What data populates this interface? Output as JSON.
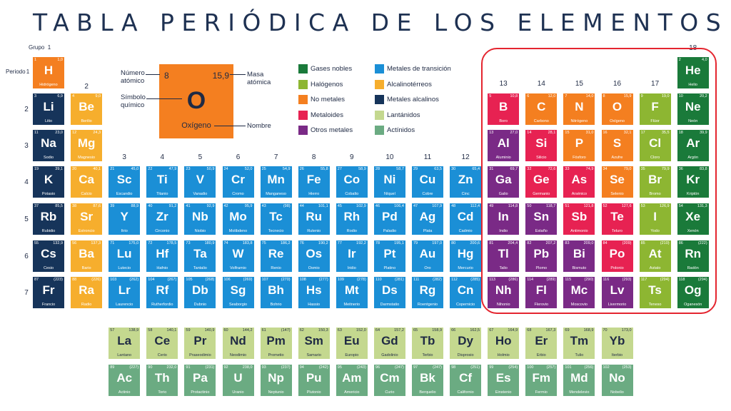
{
  "title": "TABLA PERIÓDICA DE LOS ELEMENTOS",
  "labels": {
    "grupo": "Grupo",
    "periodo": "Periodo"
  },
  "key": {
    "number": "8",
    "mass": "15,9",
    "symbol": "O",
    "name": "Oxígeno",
    "number_label_1": "Número",
    "number_label_2": "atómico",
    "symbol_label_1": "Símbolo",
    "symbol_label_2": "químico",
    "mass_label_1": "Masa",
    "mass_label_2": "atómica",
    "name_label": "Nombre"
  },
  "colors": {
    "gas_noble": "#1a7a3a",
    "halogeno": "#8db632",
    "no_metal": "#f47f20",
    "metaloide": "#e72252",
    "otro_metal": "#7a2a86",
    "transicion": "#1b8fd6",
    "alcalinoterreo": "#f6ae2d",
    "alcalino": "#16345a",
    "lantanido": "#c4d88f",
    "actinido": "#6bab82",
    "highlight": "#e4252f"
  },
  "legend": [
    {
      "label": "Gases nobles",
      "cat": "gas_noble"
    },
    {
      "label": "Halógenos",
      "cat": "halogeno"
    },
    {
      "label": "No metales",
      "cat": "no_metal"
    },
    {
      "label": "Metaloides",
      "cat": "metaloide"
    },
    {
      "label": "Otros metales",
      "cat": "otro_metal"
    },
    {
      "label": "Metales de transición",
      "cat": "transicion"
    },
    {
      "label": "Alcalinotérreos",
      "cat": "alcalinoterreo"
    },
    {
      "label": "Metales alcalinos",
      "cat": "alcalino"
    },
    {
      "label": "Lantánidos",
      "cat": "lantanido"
    },
    {
      "label": "Actínidos",
      "cat": "actinido"
    }
  ],
  "group_labels": [
    "1",
    "2",
    "3",
    "4",
    "5",
    "6",
    "7",
    "8",
    "9",
    "10",
    "11",
    "12",
    "13",
    "14",
    "15",
    "16",
    "17",
    "18"
  ],
  "period_labels": [
    "1",
    "2",
    "3",
    "4",
    "5",
    "6",
    "7"
  ],
  "elements": [
    {
      "z": "1",
      "m": "1,0",
      "s": "H",
      "n": "Hidrógeno",
      "c": "no_metal",
      "col": 1,
      "row": 1
    },
    {
      "z": "2",
      "m": "4,0",
      "s": "He",
      "n": "Helio",
      "c": "gas_noble",
      "col": 18,
      "row": 1
    },
    {
      "z": "3",
      "m": "6,9",
      "s": "Li",
      "n": "Litio",
      "c": "alcalino",
      "col": 1,
      "row": 2
    },
    {
      "z": "4",
      "m": "9,0",
      "s": "Be",
      "n": "Berilio",
      "c": "alcalinoterreo",
      "col": 2,
      "row": 2
    },
    {
      "z": "5",
      "m": "10,8",
      "s": "B",
      "n": "Boro",
      "c": "metaloide",
      "col": 13,
      "row": 2
    },
    {
      "z": "6",
      "m": "12,0",
      "s": "C",
      "n": "Carbono",
      "c": "no_metal",
      "col": 14,
      "row": 2
    },
    {
      "z": "7",
      "m": "14,0",
      "s": "N",
      "n": "Nitrógeno",
      "c": "no_metal",
      "col": 15,
      "row": 2
    },
    {
      "z": "8",
      "m": "15,9",
      "s": "O",
      "n": "Oxígeno",
      "c": "no_metal",
      "col": 16,
      "row": 2
    },
    {
      "z": "9",
      "m": "19,0",
      "s": "F",
      "n": "Flúor",
      "c": "halogeno",
      "col": 17,
      "row": 2
    },
    {
      "z": "10",
      "m": "20,2",
      "s": "Ne",
      "n": "Neón",
      "c": "gas_noble",
      "col": 18,
      "row": 2
    },
    {
      "z": "11",
      "m": "23,0",
      "s": "Na",
      "n": "Sodio",
      "c": "alcalino",
      "col": 1,
      "row": 3
    },
    {
      "z": "12",
      "m": "24,3",
      "s": "Mg",
      "n": "Magnesio",
      "c": "alcalinoterreo",
      "col": 2,
      "row": 3
    },
    {
      "z": "13",
      "m": "27,0",
      "s": "Al",
      "n": "Aluminio",
      "c": "otro_metal",
      "col": 13,
      "row": 3
    },
    {
      "z": "14",
      "m": "28,1",
      "s": "Si",
      "n": "Silicio",
      "c": "metaloide",
      "col": 14,
      "row": 3
    },
    {
      "z": "15",
      "m": "31,0",
      "s": "P",
      "n": "Fósforo",
      "c": "no_metal",
      "col": 15,
      "row": 3
    },
    {
      "z": "16",
      "m": "32,1",
      "s": "S",
      "n": "Azufre",
      "c": "no_metal",
      "col": 16,
      "row": 3
    },
    {
      "z": "17",
      "m": "35,5",
      "s": "Cl",
      "n": "Cloro",
      "c": "halogeno",
      "col": 17,
      "row": 3
    },
    {
      "z": "18",
      "m": "39,9",
      "s": "Ar",
      "n": "Argón",
      "c": "gas_noble",
      "col": 18,
      "row": 3
    },
    {
      "z": "19",
      "m": "39,1",
      "s": "K",
      "n": "Potasio",
      "c": "alcalino",
      "col": 1,
      "row": 4
    },
    {
      "z": "20",
      "m": "40,1",
      "s": "Ca",
      "n": "Calcio",
      "c": "alcalinoterreo",
      "col": 2,
      "row": 4
    },
    {
      "z": "21",
      "m": "45,0",
      "s": "Sc",
      "n": "Escandio",
      "c": "transicion",
      "col": 3,
      "row": 4
    },
    {
      "z": "22",
      "m": "47,9",
      "s": "Ti",
      "n": "Titanio",
      "c": "transicion",
      "col": 4,
      "row": 4
    },
    {
      "z": "23",
      "m": "50,9",
      "s": "V",
      "n": "Vanadio",
      "c": "transicion",
      "col": 5,
      "row": 4
    },
    {
      "z": "24",
      "m": "52,0",
      "s": "Cr",
      "n": "Cromo",
      "c": "transicion",
      "col": 6,
      "row": 4
    },
    {
      "z": "25",
      "m": "54,9",
      "s": "Mn",
      "n": "Manganeso",
      "c": "transicion",
      "col": 7,
      "row": 4
    },
    {
      "z": "26",
      "m": "55,8",
      "s": "Fe",
      "n": "Hierro",
      "c": "transicion",
      "col": 8,
      "row": 4
    },
    {
      "z": "27",
      "m": "58,9",
      "s": "Co",
      "n": "Cobalto",
      "c": "transicion",
      "col": 9,
      "row": 4
    },
    {
      "z": "28",
      "m": "58,7",
      "s": "Ni",
      "n": "Níquel",
      "c": "transicion",
      "col": 10,
      "row": 4
    },
    {
      "z": "29",
      "m": "63,5",
      "s": "Cu",
      "n": "Cobre",
      "c": "transicion",
      "col": 11,
      "row": 4
    },
    {
      "z": "30",
      "m": "65,4",
      "s": "Zn",
      "n": "Cinc",
      "c": "transicion",
      "col": 12,
      "row": 4
    },
    {
      "z": "31",
      "m": "69,7",
      "s": "Ga",
      "n": "Galio",
      "c": "otro_metal",
      "col": 13,
      "row": 4
    },
    {
      "z": "32",
      "m": "72,6",
      "s": "Ge",
      "n": "Germanio",
      "c": "metaloide",
      "col": 14,
      "row": 4
    },
    {
      "z": "33",
      "m": "74,9",
      "s": "As",
      "n": "Arsénico",
      "c": "metaloide",
      "col": 15,
      "row": 4
    },
    {
      "z": "34",
      "m": "79,0",
      "s": "Se",
      "n": "Selenio",
      "c": "no_metal",
      "col": 16,
      "row": 4
    },
    {
      "z": "35",
      "m": "79,9",
      "s": "Br",
      "n": "Bromo",
      "c": "halogeno",
      "col": 17,
      "row": 4
    },
    {
      "z": "36",
      "m": "83,8",
      "s": "Kr",
      "n": "Kriptón",
      "c": "gas_noble",
      "col": 18,
      "row": 4
    },
    {
      "z": "37",
      "m": "85,5",
      "s": "Rb",
      "n": "Rubidio",
      "c": "alcalino",
      "col": 1,
      "row": 5
    },
    {
      "z": "38",
      "m": "87,6",
      "s": "Sr",
      "n": "Estroncio",
      "c": "alcalinoterreo",
      "col": 2,
      "row": 5
    },
    {
      "z": "39",
      "m": "88,9",
      "s": "Y",
      "n": "Itrio",
      "c": "transicion",
      "col": 3,
      "row": 5
    },
    {
      "z": "40",
      "m": "91,2",
      "s": "Zr",
      "n": "Circonio",
      "c": "transicion",
      "col": 4,
      "row": 5
    },
    {
      "z": "41",
      "m": "92,9",
      "s": "Nb",
      "n": "Niobio",
      "c": "transicion",
      "col": 5,
      "row": 5
    },
    {
      "z": "42",
      "m": "95,9",
      "s": "Mo",
      "n": "Molibdeno",
      "c": "transicion",
      "col": 6,
      "row": 5
    },
    {
      "z": "43",
      "m": "(98)",
      "s": "Tc",
      "n": "Tecnecio",
      "c": "transicion",
      "col": 7,
      "row": 5
    },
    {
      "z": "44",
      "m": "101,1",
      "s": "Ru",
      "n": "Rutenio",
      "c": "transicion",
      "col": 8,
      "row": 5
    },
    {
      "z": "45",
      "m": "102,9",
      "s": "Rh",
      "n": "Rodio",
      "c": "transicion",
      "col": 9,
      "row": 5
    },
    {
      "z": "46",
      "m": "106,4",
      "s": "Pd",
      "n": "Paladio",
      "c": "transicion",
      "col": 10,
      "row": 5
    },
    {
      "z": "47",
      "m": "107,9",
      "s": "Ag",
      "n": "Plata",
      "c": "transicion",
      "col": 11,
      "row": 5
    },
    {
      "z": "48",
      "m": "112,4",
      "s": "Cd",
      "n": "Cadmio",
      "c": "transicion",
      "col": 12,
      "row": 5
    },
    {
      "z": "49",
      "m": "114,8",
      "s": "In",
      "n": "Indio",
      "c": "otro_metal",
      "col": 13,
      "row": 5
    },
    {
      "z": "50",
      "m": "118,7",
      "s": "Sn",
      "n": "Estaño",
      "c": "otro_metal",
      "col": 14,
      "row": 5
    },
    {
      "z": "51",
      "m": "121,8",
      "s": "Sb",
      "n": "Antimonio",
      "c": "metaloide",
      "col": 15,
      "row": 5
    },
    {
      "z": "52",
      "m": "127,6",
      "s": "Te",
      "n": "Teluro",
      "c": "metaloide",
      "col": 16,
      "row": 5
    },
    {
      "z": "53",
      "m": "126,9",
      "s": "I",
      "n": "Yodo",
      "c": "halogeno",
      "col": 17,
      "row": 5
    },
    {
      "z": "54",
      "m": "131,3",
      "s": "Xe",
      "n": "Xenón",
      "c": "gas_noble",
      "col": 18,
      "row": 5
    },
    {
      "z": "55",
      "m": "132,9",
      "s": "Cs",
      "n": "Cesio",
      "c": "alcalino",
      "col": 1,
      "row": 6
    },
    {
      "z": "56",
      "m": "137,3",
      "s": "Ba",
      "n": "Bario",
      "c": "alcalinoterreo",
      "col": 2,
      "row": 6
    },
    {
      "z": "71",
      "m": "175,0",
      "s": "Lu",
      "n": "Lutecio",
      "c": "transicion",
      "col": 3,
      "row": 6
    },
    {
      "z": "72",
      "m": "178,5",
      "s": "Hf",
      "n": "Hafnio",
      "c": "transicion",
      "col": 4,
      "row": 6
    },
    {
      "z": "73",
      "m": "180,9",
      "s": "Ta",
      "n": "Tantalio",
      "c": "transicion",
      "col": 5,
      "row": 6
    },
    {
      "z": "74",
      "m": "183,8",
      "s": "W",
      "n": "Volframio",
      "c": "transicion",
      "col": 6,
      "row": 6
    },
    {
      "z": "75",
      "m": "186,2",
      "s": "Re",
      "n": "Renio",
      "c": "transicion",
      "col": 7,
      "row": 6
    },
    {
      "z": "76",
      "m": "190,2",
      "s": "Os",
      "n": "Osmio",
      "c": "transicion",
      "col": 8,
      "row": 6
    },
    {
      "z": "77",
      "m": "192,2",
      "s": "Ir",
      "n": "Iridio",
      "c": "transicion",
      "col": 9,
      "row": 6
    },
    {
      "z": "78",
      "m": "195,1",
      "s": "Pt",
      "n": "Platino",
      "c": "transicion",
      "col": 10,
      "row": 6
    },
    {
      "z": "79",
      "m": "197,0",
      "s": "Au",
      "n": "Oro",
      "c": "transicion",
      "col": 11,
      "row": 6
    },
    {
      "z": "80",
      "m": "200,6",
      "s": "Hg",
      "n": "Mercurio",
      "c": "transicion",
      "col": 12,
      "row": 6
    },
    {
      "z": "81",
      "m": "204,4",
      "s": "Tl",
      "n": "Talio",
      "c": "otro_metal",
      "col": 13,
      "row": 6
    },
    {
      "z": "82",
      "m": "207,2",
      "s": "Pb",
      "n": "Plomo",
      "c": "otro_metal",
      "col": 14,
      "row": 6
    },
    {
      "z": "83",
      "m": "209,0",
      "s": "Bi",
      "n": "Bismuto",
      "c": "otro_metal",
      "col": 15,
      "row": 6
    },
    {
      "z": "84",
      "m": "(209)",
      "s": "Po",
      "n": "Polonio",
      "c": "metaloide",
      "col": 16,
      "row": 6
    },
    {
      "z": "85",
      "m": "(210)",
      "s": "At",
      "n": "Astato",
      "c": "halogeno",
      "col": 17,
      "row": 6
    },
    {
      "z": "86",
      "m": "(222)",
      "s": "Rn",
      "n": "Radón",
      "c": "gas_noble",
      "col": 18,
      "row": 6
    },
    {
      "z": "87",
      "m": "(223)",
      "s": "Fr",
      "n": "Francio",
      "c": "alcalino",
      "col": 1,
      "row": 7
    },
    {
      "z": "88",
      "m": "(226)",
      "s": "Ra",
      "n": "Radio",
      "c": "alcalinoterreo",
      "col": 2,
      "row": 7
    },
    {
      "z": "103",
      "m": "(262)",
      "s": "Lr",
      "n": "Laurencio",
      "c": "transicion",
      "col": 3,
      "row": 7
    },
    {
      "z": "104",
      "m": "(267)",
      "s": "Rf",
      "n": "Rutherfordio",
      "c": "transicion",
      "col": 4,
      "row": 7
    },
    {
      "z": "105",
      "m": "(268)",
      "s": "Db",
      "n": "Dubnio",
      "c": "transicion",
      "col": 5,
      "row": 7
    },
    {
      "z": "106",
      "m": "(269)",
      "s": "Sg",
      "n": "Seaborgio",
      "c": "transicion",
      "col": 6,
      "row": 7
    },
    {
      "z": "107",
      "m": "(270)",
      "s": "Bh",
      "n": "Bohrio",
      "c": "transicion",
      "col": 7,
      "row": 7
    },
    {
      "z": "108",
      "m": "(277)",
      "s": "Hs",
      "n": "Hassio",
      "c": "transicion",
      "col": 8,
      "row": 7
    },
    {
      "z": "109",
      "m": "(278)",
      "s": "Mt",
      "n": "Meitnerio",
      "c": "transicion",
      "col": 9,
      "row": 7
    },
    {
      "z": "110",
      "m": "(281)",
      "s": "Ds",
      "n": "Darmstatio",
      "c": "transicion",
      "col": 10,
      "row": 7
    },
    {
      "z": "111",
      "m": "(282)",
      "s": "Rg",
      "n": "Roentgenio",
      "c": "transicion",
      "col": 11,
      "row": 7
    },
    {
      "z": "112",
      "m": "(285)",
      "s": "Cn",
      "n": "Copernicio",
      "c": "transicion",
      "col": 12,
      "row": 7
    },
    {
      "z": "113",
      "m": "(286)",
      "s": "Nh",
      "n": "Nihonio",
      "c": "otro_metal",
      "col": 13,
      "row": 7
    },
    {
      "z": "114",
      "m": "(289)",
      "s": "Fl",
      "n": "Flerovio",
      "c": "otro_metal",
      "col": 14,
      "row": 7
    },
    {
      "z": "115",
      "m": "(290)",
      "s": "Mc",
      "n": "Moscovio",
      "c": "otro_metal",
      "col": 15,
      "row": 7
    },
    {
      "z": "116",
      "m": "(293)",
      "s": "Lv",
      "n": "Livermorio",
      "c": "otro_metal",
      "col": 16,
      "row": 7
    },
    {
      "z": "117",
      "m": "(294)",
      "s": "Ts",
      "n": "Teneso",
      "c": "halogeno",
      "col": 17,
      "row": 7
    },
    {
      "z": "118",
      "m": "(294)",
      "s": "Og",
      "n": "Oganesón",
      "c": "gas_noble",
      "col": 18,
      "row": 7
    },
    {
      "z": "57",
      "m": "138,9",
      "s": "La",
      "n": "Lantano",
      "c": "lantanido",
      "col": 3,
      "row": 9
    },
    {
      "z": "58",
      "m": "140,1",
      "s": "Ce",
      "n": "Cerio",
      "c": "lantanido",
      "col": 4,
      "row": 9
    },
    {
      "z": "59",
      "m": "140,9",
      "s": "Pr",
      "n": "Praseodimio",
      "c": "lantanido",
      "col": 5,
      "row": 9
    },
    {
      "z": "60",
      "m": "144,2",
      "s": "Nd",
      "n": "Neodimio",
      "c": "lantanido",
      "col": 6,
      "row": 9
    },
    {
      "z": "61",
      "m": "(147)",
      "s": "Pm",
      "n": "Prometio",
      "c": "lantanido",
      "col": 7,
      "row": 9
    },
    {
      "z": "62",
      "m": "150,3",
      "s": "Sm",
      "n": "Samario",
      "c": "lantanido",
      "col": 8,
      "row": 9
    },
    {
      "z": "63",
      "m": "152,0",
      "s": "Eu",
      "n": "Europio",
      "c": "lantanido",
      "col": 9,
      "row": 9
    },
    {
      "z": "64",
      "m": "157,2",
      "s": "Gd",
      "n": "Gadolinio",
      "c": "lantanido",
      "col": 10,
      "row": 9
    },
    {
      "z": "65",
      "m": "158,9",
      "s": "Tb",
      "n": "Terbio",
      "c": "lantanido",
      "col": 11,
      "row": 9
    },
    {
      "z": "66",
      "m": "162,5",
      "s": "Dy",
      "n": "Disprosio",
      "c": "lantanido",
      "col": 12,
      "row": 9
    },
    {
      "z": "67",
      "m": "164,9",
      "s": "Ho",
      "n": "Holmio",
      "c": "lantanido",
      "col": 13,
      "row": 9
    },
    {
      "z": "68",
      "m": "167,3",
      "s": "Er",
      "n": "Erbio",
      "c": "lantanido",
      "col": 14,
      "row": 9
    },
    {
      "z": "69",
      "m": "168,9",
      "s": "Tm",
      "n": "Tulio",
      "c": "lantanido",
      "col": 15,
      "row": 9
    },
    {
      "z": "70",
      "m": "173,0",
      "s": "Yb",
      "n": "Iterbio",
      "c": "lantanido",
      "col": 16,
      "row": 9
    },
    {
      "z": "89",
      "m": "(227)",
      "s": "Ac",
      "n": "Actinio",
      "c": "actinido",
      "col": 3,
      "row": 10
    },
    {
      "z": "90",
      "m": "232,0",
      "s": "Th",
      "n": "Torio",
      "c": "actinido",
      "col": 4,
      "row": 10
    },
    {
      "z": "91",
      "m": "(231)",
      "s": "Pa",
      "n": "Protactinio",
      "c": "actinido",
      "col": 5,
      "row": 10
    },
    {
      "z": "92",
      "m": "238,0",
      "s": "U",
      "n": "Uranio",
      "c": "actinido",
      "col": 6,
      "row": 10
    },
    {
      "z": "93",
      "m": "(237)",
      "s": "Np",
      "n": "Neptunio",
      "c": "actinido",
      "col": 7,
      "row": 10
    },
    {
      "z": "94",
      "m": "(242)",
      "s": "Pu",
      "n": "Plutonio",
      "c": "actinido",
      "col": 8,
      "row": 10
    },
    {
      "z": "95",
      "m": "(243)",
      "s": "Am",
      "n": "Americio",
      "c": "actinido",
      "col": 9,
      "row": 10
    },
    {
      "z": "96",
      "m": "(247)",
      "s": "Cm",
      "n": "Curio",
      "c": "actinido",
      "col": 10,
      "row": 10
    },
    {
      "z": "97",
      "m": "(247)",
      "s": "Bk",
      "n": "Berquelio",
      "c": "actinido",
      "col": 11,
      "row": 10
    },
    {
      "z": "98",
      "m": "(251)",
      "s": "Cf",
      "n": "Californio",
      "c": "actinido",
      "col": 12,
      "row": 10
    },
    {
      "z": "99",
      "m": "(254)",
      "s": "Es",
      "n": "Einstenio",
      "c": "actinido",
      "col": 13,
      "row": 10
    },
    {
      "z": "100",
      "m": "(257)",
      "s": "Fm",
      "n": "Fermio",
      "c": "actinido",
      "col": 14,
      "row": 10
    },
    {
      "z": "101",
      "m": "(256)",
      "s": "Md",
      "n": "Mendelevio",
      "c": "actinido",
      "col": 15,
      "row": 10
    },
    {
      "z": "102",
      "m": "(253)",
      "s": "No",
      "n": "Nobelio",
      "c": "actinido",
      "col": 16,
      "row": 10
    }
  ]
}
